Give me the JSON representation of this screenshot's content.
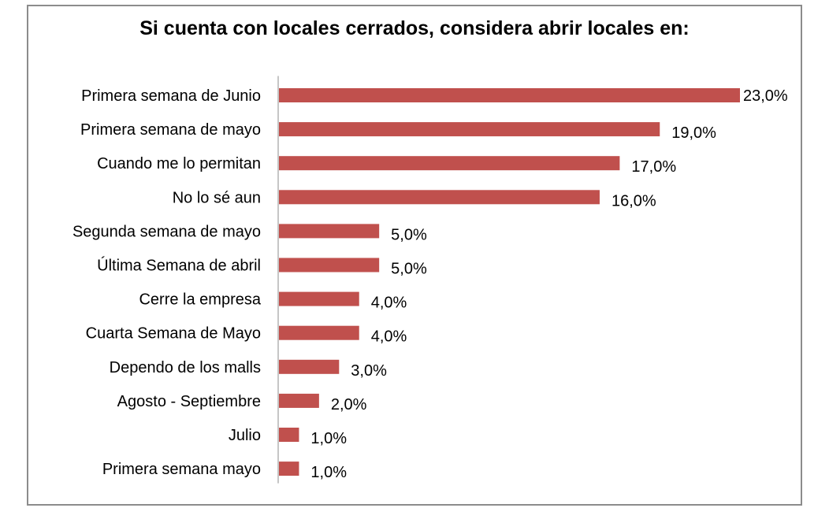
{
  "chart_data": {
    "type": "bar",
    "orientation": "horizontal",
    "title": "Si cuenta con locales cerrados, considera abrir locales en:",
    "xlabel": "",
    "ylabel": "",
    "grid": false,
    "legend": "none",
    "bar_color": "#c0504d",
    "axis_color": "#8c8c8c",
    "xlim": [
      0,
      23
    ],
    "categories": [
      "Primera semana de Junio",
      "Primera semana de mayo",
      "Cuando me lo permitan",
      "No lo sé aun",
      "Segunda semana de mayo",
      "Última Semana de abril",
      "Cerre la empresa",
      "Cuarta Semana de Mayo",
      "Dependo de los malls",
      "Agosto - Septiembre",
      "Julio",
      "Primera semana mayo"
    ],
    "values": [
      23.0,
      19.0,
      17.0,
      16.0,
      5.0,
      5.0,
      4.0,
      4.0,
      3.0,
      2.0,
      1.0,
      1.0
    ],
    "value_labels": [
      "23,0%",
      "19,0%",
      "17,0%",
      "16,0%",
      "5,0%",
      "5,0%",
      "4,0%",
      "4,0%",
      "3,0%",
      "2,0%",
      "1,0%",
      "1,0%"
    ]
  }
}
